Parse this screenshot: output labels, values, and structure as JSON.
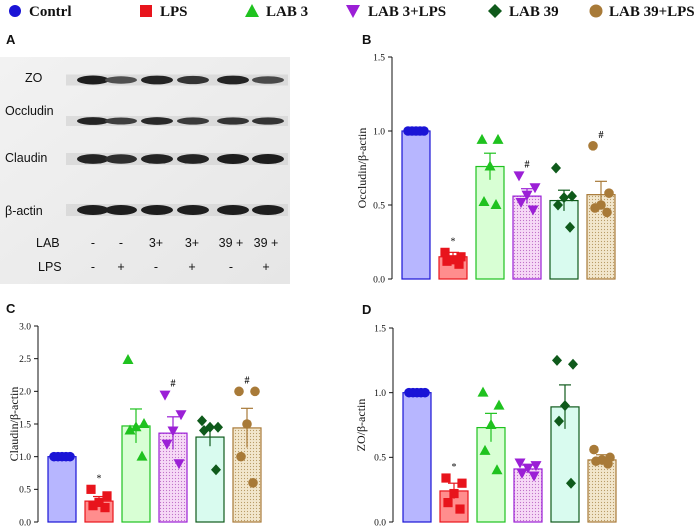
{
  "legend": [
    {
      "label": "Contrl",
      "marker": "circle",
      "color": "#1a14d6"
    },
    {
      "label": "LPS",
      "marker": "square",
      "color": "#e8141c"
    },
    {
      "label": "LAB 3",
      "marker": "triangle-up",
      "color": "#1fc21f"
    },
    {
      "label": "LAB 3+LPS",
      "marker": "triangle-down",
      "color": "#9b1fd6"
    },
    {
      "label": "LAB 39",
      "marker": "diamond",
      "color": "#0f5a1b"
    },
    {
      "label": "LAB 39+LPS",
      "marker": "circle",
      "color": "#a87a38"
    }
  ],
  "blot": {
    "letter": "A",
    "bands": [
      "ZO",
      "Occludin",
      "Claudin",
      "β-actin"
    ],
    "lab_row_label": "LAB",
    "lps_row_label": "LPS",
    "lab_values": [
      "-",
      "-",
      "3+",
      "3+",
      "39 +",
      "39 +"
    ],
    "lps_values": [
      "-",
      "+",
      "-",
      "+",
      "-",
      "+"
    ]
  },
  "chart_data": [
    {
      "panel": "B",
      "type": "bar",
      "title": "",
      "xlabel": "",
      "ylabel": "Occludin/β-actin",
      "ylim": [
        0,
        1.5
      ],
      "yticks": [
        "0.0",
        "0.5",
        "1.0",
        "1.5"
      ],
      "categories": [
        "Contrl",
        "LPS",
        "LAB 3",
        "LAB 3+LPS",
        "LAB 39",
        "LAB 39+LPS"
      ],
      "values": [
        1.0,
        0.15,
        0.76,
        0.56,
        0.53,
        0.57
      ],
      "errors": [
        0.0,
        0.03,
        0.09,
        0.05,
        0.07,
        0.09
      ],
      "points": [
        [
          1,
          1,
          1,
          1,
          1
        ],
        [
          0.18,
          0.15,
          0.13,
          0.12,
          0.1
        ],
        [
          0.94,
          0.94,
          0.76,
          0.52,
          0.5
        ],
        [
          0.7,
          0.62,
          0.57,
          0.52,
          0.47
        ],
        [
          0.75,
          0.56,
          0.55,
          0.5,
          0.35
        ],
        [
          0.9,
          0.58,
          0.5,
          0.48,
          0.45
        ]
      ],
      "significance": [
        "",
        "*",
        "",
        "#",
        "",
        "#"
      ]
    },
    {
      "panel": "C",
      "type": "bar",
      "title": "",
      "xlabel": "",
      "ylabel": "Claudin/β-actin",
      "ylim": [
        0,
        3.0
      ],
      "yticks": [
        "0.0",
        "0.5",
        "1.0",
        "1.5",
        "2.0",
        "2.5",
        "3.0"
      ],
      "categories": [
        "Contrl",
        "LPS",
        "LAB 3",
        "LAB 3+LPS",
        "LAB 39",
        "LAB 39+LPS"
      ],
      "values": [
        1.0,
        0.32,
        1.47,
        1.36,
        1.3,
        1.44
      ],
      "errors": [
        0.0,
        0.07,
        0.26,
        0.25,
        0.14,
        0.3
      ],
      "points": [
        [
          1,
          1,
          1,
          1,
          1
        ],
        [
          0.5,
          0.4,
          0.3,
          0.25,
          0.22
        ],
        [
          2.48,
          1.5,
          1.45,
          1.4,
          1.0
        ],
        [
          1.95,
          1.65,
          1.4,
          1.2,
          0.9
        ],
        [
          1.55,
          1.45,
          1.45,
          1.4,
          0.8
        ],
        [
          2.0,
          2.0,
          1.5,
          1.0,
          0.6
        ]
      ],
      "significance": [
        "",
        "*",
        "",
        "#",
        "",
        "#"
      ]
    },
    {
      "panel": "D",
      "type": "bar",
      "title": "",
      "xlabel": "",
      "ylabel": "ZO/β-actin",
      "ylim": [
        0,
        1.5
      ],
      "yticks": [
        "0.0",
        "0.5",
        "1.0",
        "1.5"
      ],
      "categories": [
        "Contrl",
        "LPS",
        "LAB 3",
        "LAB 3+LPS",
        "LAB 39",
        "LAB 39+LPS"
      ],
      "values": [
        1.0,
        0.24,
        0.73,
        0.41,
        0.89,
        0.48
      ],
      "errors": [
        0.0,
        0.06,
        0.11,
        0.03,
        0.17,
        0.04
      ],
      "points": [
        [
          1,
          1,
          1,
          1,
          1
        ],
        [
          0.34,
          0.3,
          0.22,
          0.15,
          0.1
        ],
        [
          1.0,
          0.9,
          0.75,
          0.55,
          0.4
        ],
        [
          0.46,
          0.44,
          0.42,
          0.38,
          0.36
        ],
        [
          1.25,
          1.22,
          0.9,
          0.78,
          0.3
        ],
        [
          0.56,
          0.5,
          0.48,
          0.47,
          0.45
        ]
      ],
      "significance": [
        "",
        "*",
        "",
        "",
        "",
        ""
      ]
    }
  ]
}
